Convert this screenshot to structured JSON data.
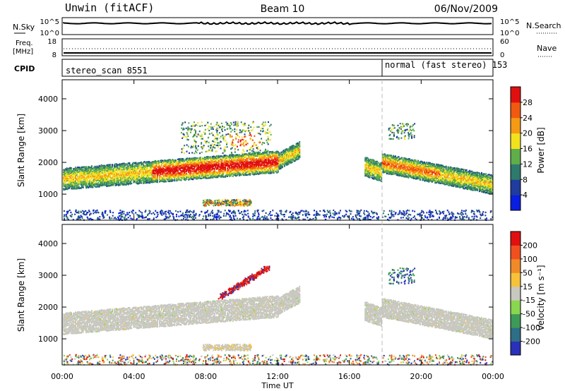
{
  "header": {
    "station": "Unwin (fitACF)",
    "beam": "Beam 10",
    "date": "06/Nov/2009"
  },
  "noise_panel": {
    "left_label": "N.Sky",
    "left_ticks": [
      "10^5",
      "10^0"
    ],
    "right_label": "N.Search",
    "right_ticks": [
      "10^5",
      "10^0"
    ]
  },
  "freq_panel": {
    "left_label_1": "Freq.",
    "left_label_2": "[MHz]",
    "left_ticks": [
      "18",
      "8"
    ],
    "right_label": "Nave",
    "right_ticks": [
      "60",
      "0"
    ]
  },
  "cpid_panel": {
    "label": "CPID",
    "mode_1": "stereo_scan 8551",
    "mode_2": "normal (fast stereo) 153"
  },
  "chart_data": [
    {
      "type": "heatmap",
      "name": "power",
      "ylabel": "Slant Range [km]",
      "yticks": [
        1000,
        2000,
        3000,
        4000
      ],
      "ylim": [
        180,
        4600
      ],
      "xlim": [
        0,
        24
      ],
      "colorbar": {
        "label": "Power [dB]",
        "ticks": [
          "4",
          "8",
          "12",
          "16",
          "20",
          "24",
          "28"
        ],
        "colors": [
          "#0a1ee0",
          "#203c9c",
          "#2e7a6c",
          "#5fae4a",
          "#f2e21e",
          "#f59a14",
          "#f05a10",
          "#e01010"
        ]
      }
    },
    {
      "type": "heatmap",
      "name": "velocity",
      "ylabel": "Slant Range [km]",
      "yticks": [
        1000,
        2000,
        3000,
        4000
      ],
      "ylim": [
        180,
        4600
      ],
      "xlim": [
        0,
        24
      ],
      "xlabel": "Time UT",
      "xticks": [
        "00:00",
        "04:00",
        "08:00",
        "12:00",
        "16:00",
        "20:00",
        "00:00"
      ],
      "colorbar": {
        "label": "Velocity [m s⁻¹]",
        "ticks": [
          "200",
          "100",
          "50",
          "15",
          "-15",
          "-50",
          "-100",
          "-200"
        ],
        "colors": [
          "#2a30b8",
          "#2e6e86",
          "#3e9a58",
          "#8ad650",
          "#c8c8c0",
          "#f5c23a",
          "#f08a28",
          "#f05020",
          "#e01010"
        ]
      }
    }
  ]
}
